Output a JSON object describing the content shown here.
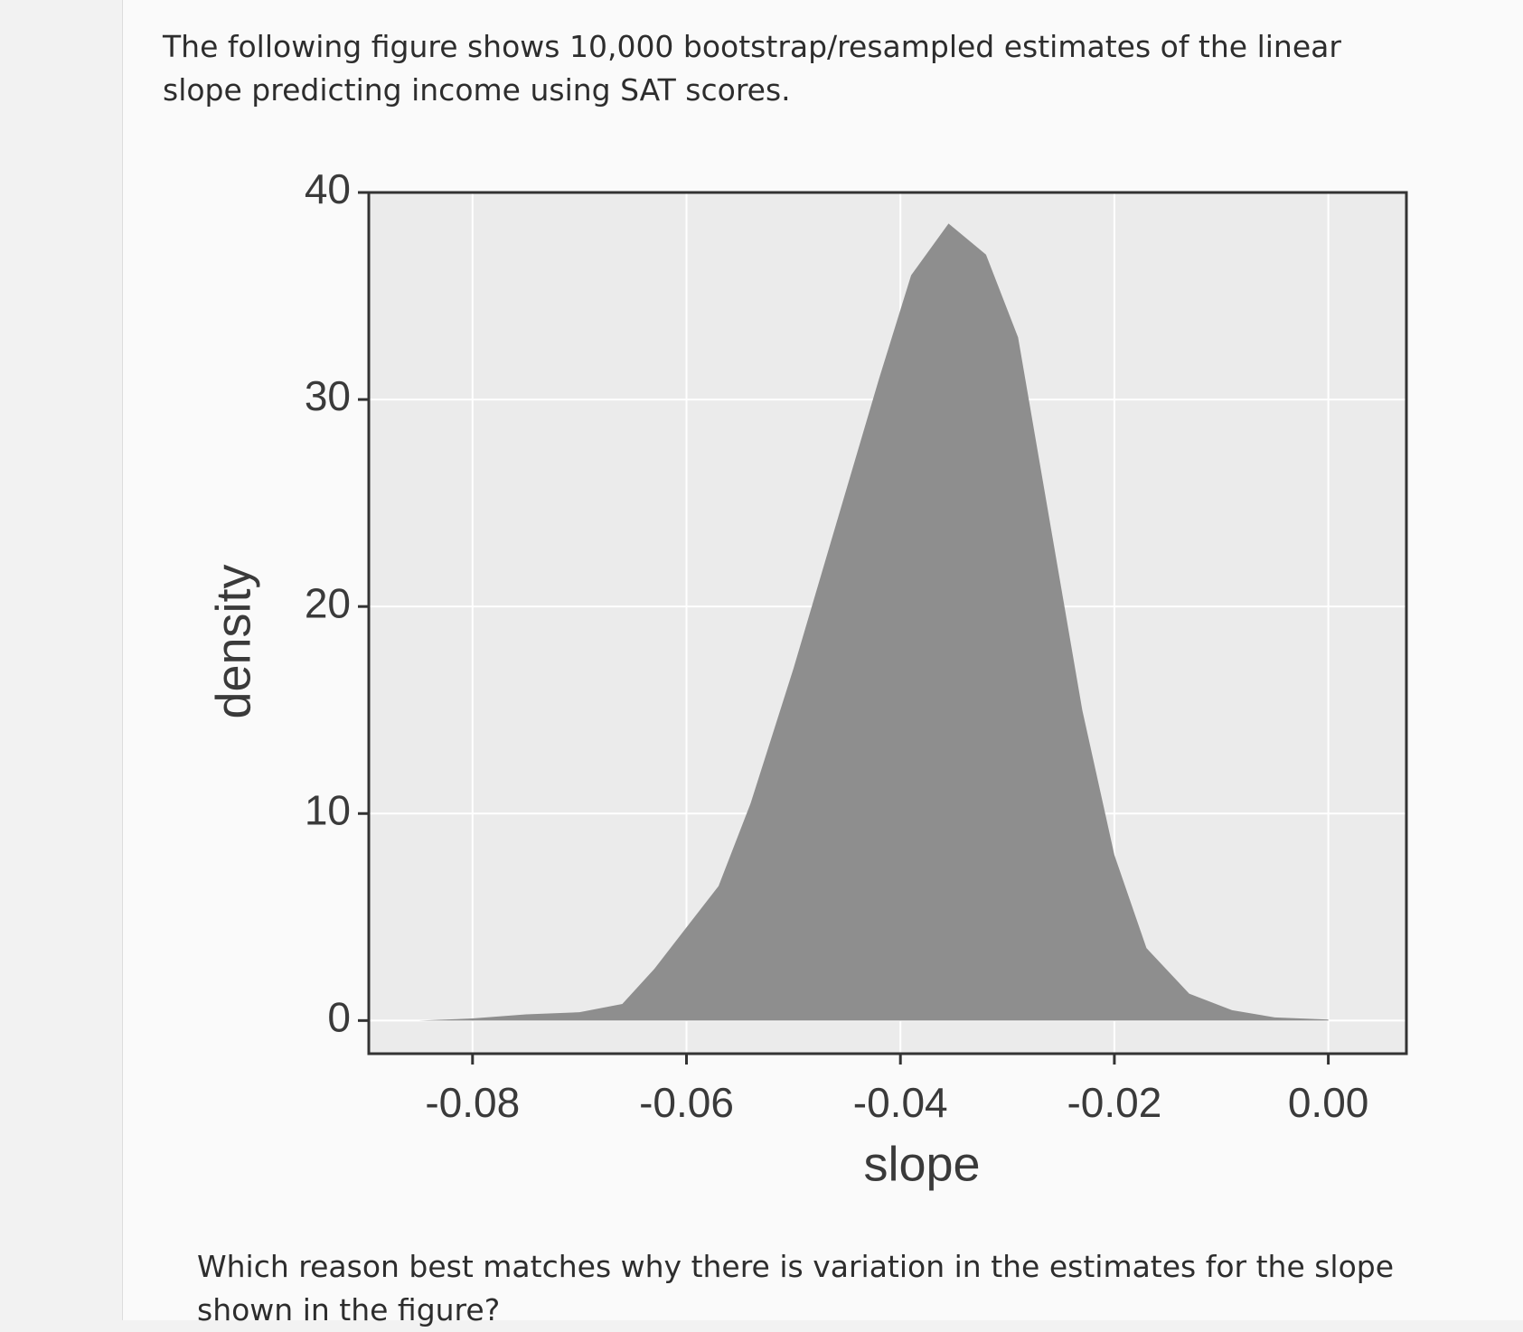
{
  "intro": "The following figure shows 10,000 bootstrap/resampled estimates of the linear slope predicting income using SAT scores.",
  "question": "Which reason best matches why there is variation in the estimates for the slope shown in the figure?",
  "chart_data": {
    "type": "area",
    "x_label": "slope",
    "y_label": "density",
    "x": [
      -0.085,
      -0.08,
      -0.075,
      -0.07,
      -0.066,
      -0.063,
      -0.06,
      -0.057,
      -0.054,
      -0.05,
      -0.046,
      -0.042,
      -0.039,
      -0.0355,
      -0.032,
      -0.029,
      -0.026,
      -0.023,
      -0.02,
      -0.017,
      -0.013,
      -0.009,
      -0.005,
      0.0
    ],
    "values": [
      0,
      0.1,
      0.3,
      0.4,
      0.8,
      2.5,
      4.5,
      6.5,
      10.5,
      17,
      24,
      31,
      36,
      38.5,
      37,
      33,
      24,
      15,
      8,
      3.5,
      1.3,
      0.5,
      0.15,
      0.05
    ],
    "color": "#8e8e8e",
    "xlim": [
      -0.0897,
      0.0073
    ],
    "ylim": [
      -1.6,
      40
    ],
    "xticks": [
      {
        "value": -0.08,
        "label": "-0.08"
      },
      {
        "value": -0.06,
        "label": "-0.06"
      },
      {
        "value": -0.04,
        "label": "-0.04"
      },
      {
        "value": -0.02,
        "label": "-0.02"
      },
      {
        "value": 0,
        "label": "0.00"
      }
    ],
    "yticks": [
      0,
      10,
      20,
      30,
      40
    ],
    "grid": true
  }
}
